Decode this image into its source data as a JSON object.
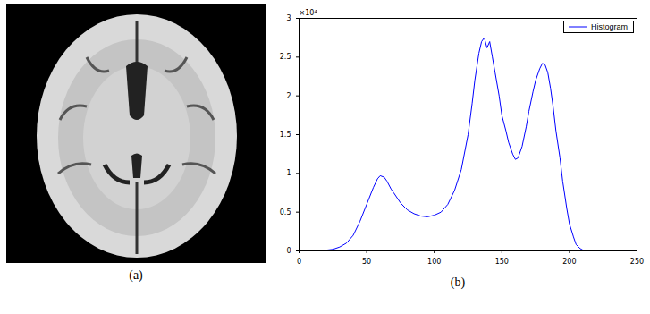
{
  "image": {
    "caption": "(a)"
  },
  "chart_data": {
    "type": "line",
    "caption": "(b)",
    "annotation": "×10⁴",
    "x": [
      0,
      5,
      10,
      15,
      20,
      25,
      30,
      35,
      40,
      45,
      50,
      55,
      58,
      60,
      63,
      65,
      68,
      70,
      75,
      80,
      85,
      90,
      95,
      100,
      105,
      110,
      115,
      120,
      125,
      128,
      130,
      133,
      135,
      137,
      139,
      141,
      143,
      145,
      148,
      150,
      153,
      155,
      158,
      160,
      162,
      165,
      168,
      170,
      173,
      175,
      178,
      180,
      182,
      184,
      186,
      188,
      190,
      193,
      195,
      198,
      200,
      203,
      205,
      208,
      210,
      215,
      220,
      230,
      235,
      240
    ],
    "series": [
      {
        "name": "Histogram",
        "color": "#0000ff",
        "values": [
          0,
          0,
          0.002,
          0.005,
          0.01,
          0.02,
          0.05,
          0.1,
          0.2,
          0.38,
          0.6,
          0.82,
          0.93,
          0.97,
          0.95,
          0.9,
          0.8,
          0.75,
          0.62,
          0.53,
          0.48,
          0.45,
          0.44,
          0.46,
          0.5,
          0.6,
          0.78,
          1.05,
          1.5,
          1.9,
          2.2,
          2.55,
          2.7,
          2.75,
          2.62,
          2.7,
          2.5,
          2.3,
          2.0,
          1.75,
          1.55,
          1.4,
          1.25,
          1.18,
          1.2,
          1.35,
          1.6,
          1.8,
          2.05,
          2.2,
          2.35,
          2.42,
          2.4,
          2.3,
          2.1,
          1.85,
          1.55,
          1.2,
          0.9,
          0.55,
          0.35,
          0.18,
          0.08,
          0.03,
          0.01,
          0.003,
          0.001,
          0,
          0,
          0
        ]
      }
    ],
    "xlim": [
      0,
      250
    ],
    "xticks": [
      0,
      50,
      100,
      150,
      200,
      250
    ],
    "ylim": [
      0,
      3
    ],
    "yticks": [
      0,
      0.5,
      1,
      1.5,
      2,
      2.5,
      3
    ],
    "legend": "top-right",
    "grid": false
  }
}
